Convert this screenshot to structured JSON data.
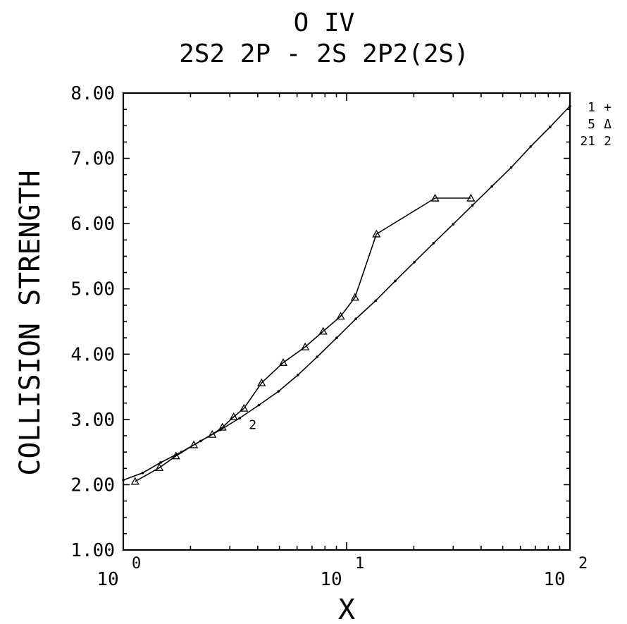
{
  "chart_data": {
    "type": "line",
    "title": "O IV",
    "subtitle": "2S2 2P - 2S 2P2(2S)",
    "xlabel": "X",
    "ylabel": "COLLISION STRENGTH",
    "x_scale": "log",
    "xlim": [
      1,
      100
    ],
    "ylim": [
      1.0,
      8.0
    ],
    "y_ticks": [
      "1.00",
      "2.00",
      "3.00",
      "4.00",
      "5.00",
      "6.00",
      "7.00",
      "8.00"
    ],
    "x_ticks": [
      {
        "base": "10",
        "exp": "0"
      },
      {
        "base": "10",
        "exp": "1"
      },
      {
        "base": "10",
        "exp": "2"
      }
    ],
    "legend": {
      "placement": "top-right-outside",
      "entries": [
        {
          "id": "1",
          "symbol": "+"
        },
        {
          "id": "5",
          "symbol": "Δ"
        },
        {
          "id": "21",
          "symbol": "2"
        }
      ]
    },
    "series": [
      {
        "legend_id": "21",
        "marker": "dot",
        "x": [
          1.0,
          1.22,
          1.47,
          1.82,
          2.22,
          2.72,
          3.32,
          4.05,
          4.95,
          6.05,
          7.39,
          9.03,
          11.0,
          13.5,
          16.5,
          20.1,
          24.5,
          30.0,
          36.6,
          44.7,
          54.6,
          66.7,
          81.5,
          100.0
        ],
        "y": [
          2.07,
          2.18,
          2.34,
          2.5,
          2.67,
          2.84,
          3.02,
          3.22,
          3.43,
          3.68,
          3.96,
          4.25,
          4.54,
          4.82,
          5.12,
          5.41,
          5.7,
          5.99,
          6.28,
          6.57,
          6.86,
          7.18,
          7.48,
          7.8
        ]
      },
      {
        "legend_id": "5",
        "marker": "triangle",
        "x": [
          1.13,
          1.45,
          1.72,
          2.07,
          2.5,
          2.78,
          3.12,
          3.47,
          4.16,
          5.2,
          6.52,
          7.85,
          9.4,
          10.9,
          13.6,
          24.9,
          36.0
        ],
        "y": [
          2.05,
          2.26,
          2.44,
          2.61,
          2.77,
          2.88,
          3.04,
          3.17,
          3.56,
          3.87,
          4.11,
          4.35,
          4.58,
          4.87,
          5.84,
          6.39,
          6.39
        ]
      }
    ],
    "inline_label": {
      "text": "2",
      "x": 3.65,
      "y": 2.98
    }
  }
}
